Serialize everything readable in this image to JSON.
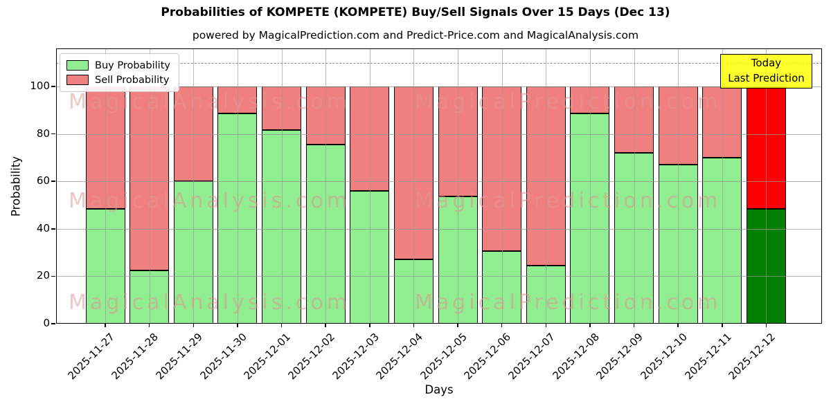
{
  "title": "Probabilities of KOMPETE (KOMPETE) Buy/Sell Signals Over 15 Days (Dec 13)",
  "subtitle": "powered by MagicalPrediction.com and Predict-Price.com and MagicalAnalysis.com",
  "legend": {
    "buy_label": "Buy Probability",
    "sell_label": "Sell Probability"
  },
  "annotation": {
    "line1": "Today",
    "line2": "Last Prediction"
  },
  "watermark": {
    "left": "MagicalAnalysis.com",
    "right": "MagicalPrediction.com"
  },
  "colors": {
    "buy": "#90ee90",
    "sell": "#f08080",
    "today_buy": "#008000",
    "today_sell": "#ff0000",
    "bar_edge": "#000000",
    "annotation_bg": "#ffff00",
    "grid": "#969696"
  },
  "chart_data": {
    "type": "bar",
    "stacked": true,
    "title": "Probabilities of KOMPETE (KOMPETE) Buy/Sell Signals Over 15 Days (Dec 13)",
    "xlabel": "Days",
    "ylabel": "Probability",
    "ylim": [
      0,
      116
    ],
    "yticks": [
      0,
      20,
      40,
      60,
      80,
      100
    ],
    "dashed_threshold_y": 110,
    "grid": true,
    "legend_position": "upper left",
    "categories": [
      "2025-11-27",
      "2025-11-28",
      "2025-11-29",
      "2025-11-30",
      "2025-12-01",
      "2025-12-02",
      "2025-12-03",
      "2025-12-04",
      "2025-12-05",
      "2025-12-06",
      "2025-12-07",
      "2025-12-08",
      "2025-12-09",
      "2025-12-10",
      "2025-12-11",
      "2025-12-12"
    ],
    "series": [
      {
        "name": "Buy Probability",
        "color": "#90ee90",
        "values": [
          48.5,
          22.5,
          60,
          88.5,
          81.5,
          75.5,
          56,
          27,
          53.5,
          30.5,
          24.5,
          88.5,
          72,
          67,
          70,
          48.5
        ]
      },
      {
        "name": "Sell Probability",
        "color": "#f08080",
        "values": [
          51.5,
          77.5,
          40,
          11.5,
          18.5,
          24.5,
          44,
          73,
          46.5,
          69.5,
          75.5,
          11.5,
          28,
          33,
          30,
          51.5
        ]
      }
    ],
    "today_index": 15
  }
}
